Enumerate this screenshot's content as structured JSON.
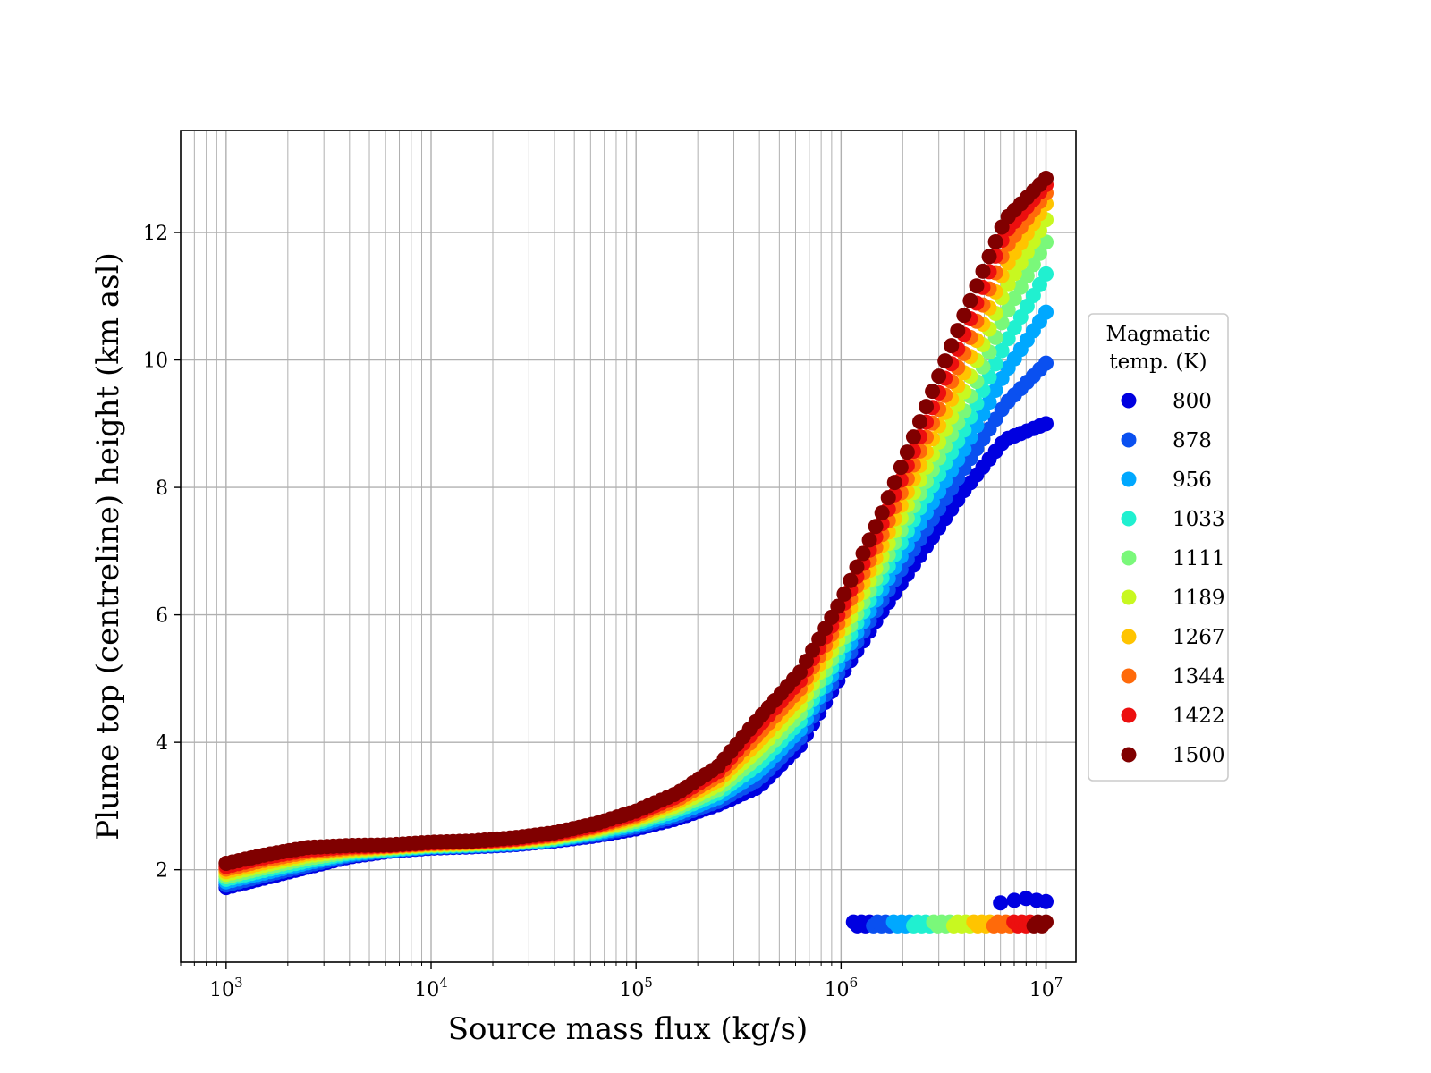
{
  "chart_data": {
    "type": "scatter",
    "xlabel": "Source mass flux (kg/s)",
    "ylabel": "Plume top (centreline) height (km asl)",
    "xscale": "log",
    "xlim": [
      600,
      14000000
    ],
    "ylim": [
      0.55,
      13.6
    ],
    "xticks": [
      {
        "value": 1000,
        "base": "10",
        "exp": "3"
      },
      {
        "value": 10000,
        "base": "10",
        "exp": "4"
      },
      {
        "value": 100000,
        "base": "10",
        "exp": "5"
      },
      {
        "value": 1000000,
        "base": "10",
        "exp": "6"
      },
      {
        "value": 10000000,
        "base": "10",
        "exp": "7"
      }
    ],
    "yticks": [
      2,
      4,
      6,
      8,
      10,
      12
    ],
    "grid": true,
    "legend": {
      "title_lines": [
        "Magmatic",
        "temp. (K)"
      ],
      "placement": "outside right"
    },
    "x": [
      1000,
      1585,
      2512,
      3981,
      6310,
      10000,
      15849,
      25119,
      39811,
      63096,
      100000,
      158489,
      251189,
      398107,
      630957,
      1000000,
      1584893,
      2511886,
      3981072,
      6309573,
      10000000
    ],
    "series": [
      {
        "name": "800",
        "color": "#0000e0",
        "y": [
          1.72,
          1.88,
          2.04,
          2.2,
          2.29,
          2.34,
          2.36,
          2.39,
          2.45,
          2.53,
          2.64,
          2.8,
          3.02,
          3.3,
          3.95,
          5.05,
          6.05,
          7.0,
          7.95,
          8.75,
          9.0
        ],
        "secondary": {
          "x": [
            6000000,
            7000000,
            8000000,
            9000000,
            10000000
          ],
          "y": [
            1.48,
            1.52,
            1.55,
            1.52,
            1.5
          ]
        }
      },
      {
        "name": "878",
        "color": "#0a50f0",
        "y": [
          1.76,
          1.92,
          2.07,
          2.22,
          2.3,
          2.35,
          2.37,
          2.4,
          2.46,
          2.55,
          2.67,
          2.84,
          3.07,
          3.42,
          4.07,
          5.17,
          6.23,
          7.27,
          8.3,
          9.3,
          9.95
        ]
      },
      {
        "name": "956",
        "color": "#00a8ff",
        "y": [
          1.81,
          1.96,
          2.11,
          2.24,
          2.31,
          2.36,
          2.38,
          2.41,
          2.47,
          2.57,
          2.7,
          2.88,
          3.13,
          3.54,
          4.2,
          5.3,
          6.4,
          7.52,
          8.6,
          9.8,
          10.75
        ]
      },
      {
        "name": "1033",
        "color": "#20f0d0",
        "y": [
          1.85,
          2.0,
          2.14,
          2.26,
          2.32,
          2.37,
          2.39,
          2.42,
          2.48,
          2.59,
          2.73,
          2.93,
          3.2,
          3.66,
          4.33,
          5.43,
          6.58,
          7.77,
          8.9,
          10.25,
          11.35
        ]
      },
      {
        "name": "1111",
        "color": "#7af87a",
        "y": [
          1.89,
          2.04,
          2.18,
          2.28,
          2.34,
          2.38,
          2.4,
          2.43,
          2.5,
          2.61,
          2.76,
          2.97,
          3.26,
          3.78,
          4.45,
          5.56,
          6.75,
          8.0,
          9.2,
          10.7,
          11.85
        ]
      },
      {
        "name": "1189",
        "color": "#c8f820",
        "y": [
          1.93,
          2.08,
          2.22,
          2.3,
          2.35,
          2.39,
          2.41,
          2.44,
          2.51,
          2.63,
          2.79,
          3.01,
          3.33,
          3.9,
          4.58,
          5.69,
          6.92,
          8.22,
          9.5,
          11.1,
          12.2
        ]
      },
      {
        "name": "1267",
        "color": "#ffc400",
        "y": [
          1.97,
          2.12,
          2.25,
          2.32,
          2.36,
          2.4,
          2.42,
          2.46,
          2.53,
          2.65,
          2.82,
          3.06,
          3.4,
          4.02,
          4.71,
          5.82,
          7.09,
          8.45,
          9.8,
          11.45,
          12.45
        ]
      },
      {
        "name": "1344",
        "color": "#ff6a0a",
        "y": [
          2.01,
          2.16,
          2.28,
          2.34,
          2.37,
          2.41,
          2.43,
          2.47,
          2.54,
          2.67,
          2.85,
          3.1,
          3.47,
          4.14,
          4.84,
          5.95,
          7.26,
          8.68,
          10.1,
          11.75,
          12.62
        ]
      },
      {
        "name": "1422",
        "color": "#ec0f0f",
        "y": [
          2.05,
          2.2,
          2.31,
          2.36,
          2.38,
          2.42,
          2.44,
          2.48,
          2.56,
          2.69,
          2.88,
          3.15,
          3.54,
          4.26,
          4.97,
          6.08,
          7.43,
          8.91,
          10.4,
          12.0,
          12.75
        ]
      },
      {
        "name": "1500",
        "color": "#800000",
        "y": [
          2.1,
          2.24,
          2.35,
          2.38,
          2.39,
          2.43,
          2.45,
          2.5,
          2.58,
          2.72,
          2.92,
          3.2,
          3.62,
          4.38,
          5.1,
          6.22,
          7.6,
          9.15,
          10.7,
          12.2,
          12.85
        ]
      }
    ],
    "lower_branch": {
      "x_start": 1150000,
      "x_end": 10000000,
      "y": 1.15
    }
  }
}
